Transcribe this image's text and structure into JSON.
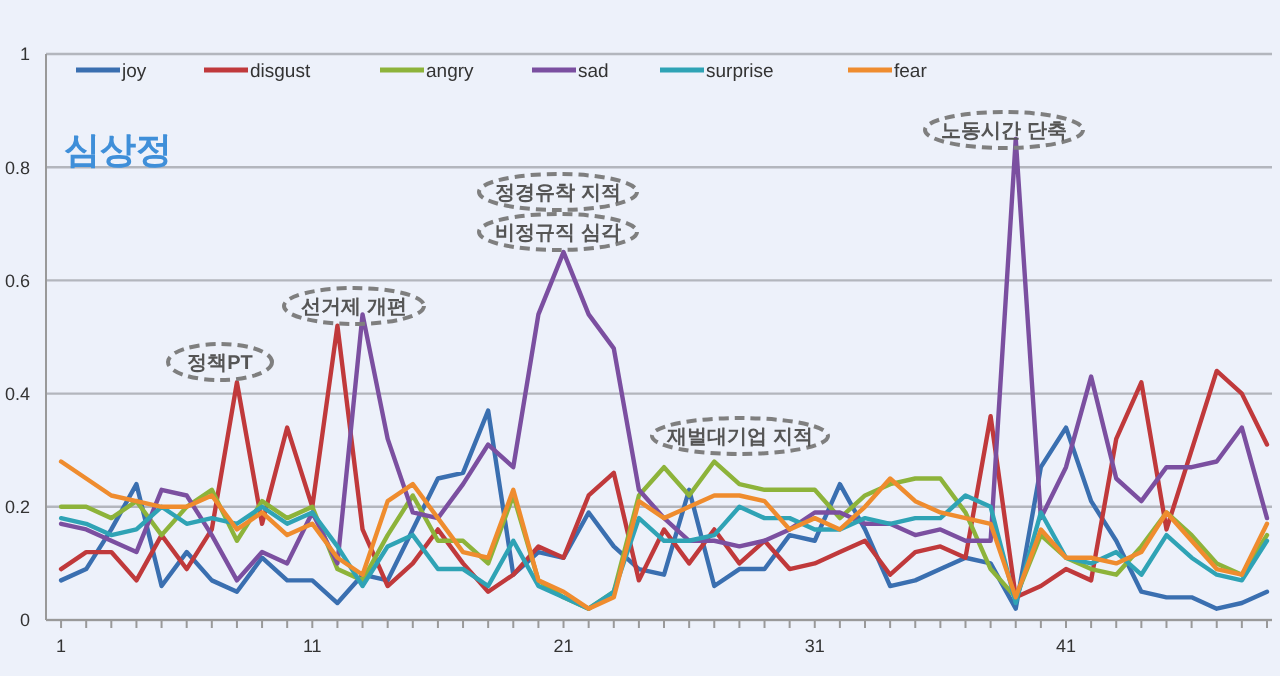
{
  "chart_data": {
    "type": "line",
    "title": "심상정",
    "x": [
      1,
      2,
      3,
      4,
      5,
      6,
      7,
      8,
      9,
      10,
      11,
      12,
      13,
      14,
      15,
      16,
      17,
      18,
      19,
      20,
      21,
      22,
      23,
      24,
      25,
      26,
      27,
      28,
      29,
      30,
      31,
      32,
      33,
      34,
      35,
      36,
      37,
      38,
      39,
      40,
      41,
      42,
      43,
      44,
      45,
      46,
      47,
      48,
      49
    ],
    "series": [
      {
        "name": "joy",
        "color": "#3a6fb0",
        "values": [
          0.07,
          0.09,
          0.16,
          0.24,
          0.06,
          0.12,
          0.07,
          0.05,
          0.11,
          0.07,
          0.07,
          0.03,
          0.08,
          0.07,
          0.16,
          0.25,
          0.26,
          0.37,
          0.08,
          0.12,
          0.11,
          0.19,
          0.13,
          0.09,
          0.08,
          0.23,
          0.06,
          0.09,
          0.09,
          0.15,
          0.14,
          0.24,
          0.16,
          0.06,
          0.07,
          0.09,
          0.11,
          0.1,
          0.02,
          0.27,
          0.34,
          0.21,
          0.14,
          0.05,
          0.04,
          0.04,
          0.02,
          0.03,
          0.05
        ]
      },
      {
        "name": "disgust",
        "color": "#c0393b",
        "values": [
          0.09,
          0.12,
          0.12,
          0.07,
          0.15,
          0.09,
          0.16,
          0.42,
          0.17,
          0.34,
          0.2,
          0.52,
          0.16,
          0.06,
          0.1,
          0.16,
          0.1,
          0.05,
          0.08,
          0.13,
          0.11,
          0.22,
          0.26,
          0.07,
          0.16,
          0.1,
          0.16,
          0.1,
          0.14,
          0.09,
          0.1,
          0.12,
          0.14,
          0.08,
          0.12,
          0.13,
          0.11,
          0.36,
          0.04,
          0.06,
          0.09,
          0.07,
          0.32,
          0.42,
          0.16,
          0.3,
          0.44,
          0.4,
          0.31
        ]
      },
      {
        "name": "angry",
        "color": "#8db33a",
        "values": [
          0.2,
          0.2,
          0.18,
          0.21,
          0.15,
          0.2,
          0.23,
          0.14,
          0.21,
          0.18,
          0.2,
          0.09,
          0.07,
          0.15,
          0.22,
          0.14,
          0.14,
          0.1,
          0.22,
          0.07,
          0.04,
          0.02,
          0.05,
          0.22,
          0.27,
          0.22,
          0.28,
          0.24,
          0.23,
          0.23,
          0.23,
          0.18,
          0.22,
          0.24,
          0.25,
          0.25,
          0.19,
          0.09,
          0.04,
          0.15,
          0.11,
          0.09,
          0.08,
          0.13,
          0.19,
          0.15,
          0.1,
          0.08,
          0.15
        ]
      },
      {
        "name": "sad",
        "color": "#7b4fa0",
        "values": [
          0.17,
          0.16,
          0.14,
          0.12,
          0.23,
          0.22,
          0.15,
          0.07,
          0.12,
          0.1,
          0.19,
          0.1,
          0.54,
          0.32,
          0.19,
          0.18,
          0.24,
          0.31,
          0.27,
          0.54,
          0.65,
          0.54,
          0.48,
          0.23,
          0.18,
          0.14,
          0.14,
          0.13,
          0.14,
          0.16,
          0.19,
          0.19,
          0.17,
          0.17,
          0.15,
          0.16,
          0.14,
          0.14,
          0.85,
          0.18,
          0.27,
          0.43,
          0.25,
          0.21,
          0.27,
          0.27,
          0.28,
          0.34,
          0.18
        ]
      },
      {
        "name": "surprise",
        "color": "#2fa3b5",
        "values": [
          0.18,
          0.17,
          0.15,
          0.16,
          0.2,
          0.17,
          0.18,
          0.17,
          0.2,
          0.17,
          0.19,
          0.13,
          0.06,
          0.13,
          0.15,
          0.09,
          0.09,
          0.06,
          0.14,
          0.06,
          0.04,
          0.02,
          0.05,
          0.18,
          0.14,
          0.14,
          0.15,
          0.2,
          0.18,
          0.18,
          0.16,
          0.16,
          0.18,
          0.17,
          0.18,
          0.18,
          0.22,
          0.2,
          0.03,
          0.19,
          0.11,
          0.1,
          0.12,
          0.08,
          0.15,
          0.11,
          0.08,
          0.07,
          0.14
        ]
      },
      {
        "name": "fear",
        "color": "#ef8c2e",
        "values": [
          0.28,
          0.25,
          0.22,
          0.21,
          0.2,
          0.2,
          0.22,
          0.16,
          0.19,
          0.15,
          0.17,
          0.11,
          0.08,
          0.21,
          0.24,
          0.18,
          0.12,
          0.11,
          0.23,
          0.07,
          0.05,
          0.02,
          0.04,
          0.21,
          0.18,
          0.2,
          0.22,
          0.22,
          0.21,
          0.16,
          0.18,
          0.16,
          0.2,
          0.25,
          0.21,
          0.19,
          0.18,
          0.17,
          0.04,
          0.16,
          0.11,
          0.11,
          0.1,
          0.12,
          0.19,
          0.14,
          0.09,
          0.08,
          0.17
        ]
      }
    ],
    "xlim": [
      0.4,
      49.2
    ],
    "xticks": [
      1,
      {
        "value": 2,
        "label": null
      },
      {
        "value": 3,
        "label": null
      },
      {
        "value": 4,
        "label": null
      },
      {
        "value": 5,
        "label": null
      },
      {
        "value": 6,
        "label": null
      },
      {
        "value": 7,
        "label": null
      },
      {
        "value": 8,
        "label": null
      },
      {
        "value": 9,
        "label": null
      },
      {
        "value": 10,
        "label": null
      },
      11,
      {
        "value": 12,
        "label": null
      },
      {
        "value": 13,
        "label": null
      },
      {
        "value": 14,
        "label": null
      },
      {
        "value": 15,
        "label": null
      },
      {
        "value": 16,
        "label": null
      },
      {
        "value": 17,
        "label": null
      },
      {
        "value": 18,
        "label": null
      },
      {
        "value": 19,
        "label": null
      },
      {
        "value": 20,
        "label": null
      },
      21,
      {
        "value": 22,
        "label": null
      },
      {
        "value": 23,
        "label": null
      },
      {
        "value": 24,
        "label": null
      },
      {
        "value": 25,
        "label": null
      },
      {
        "value": 26,
        "label": null
      },
      {
        "value": 27,
        "label": null
      },
      {
        "value": 28,
        "label": null
      },
      {
        "value": 29,
        "label": null
      },
      {
        "value": 30,
        "label": null
      },
      31,
      {
        "value": 32,
        "label": null
      },
      {
        "value": 33,
        "label": null
      },
      {
        "value": 34,
        "label": null
      },
      {
        "value": 35,
        "label": null
      },
      {
        "value": 36,
        "label": null
      },
      {
        "value": 37,
        "label": null
      },
      {
        "value": 38,
        "label": null
      },
      {
        "value": 39,
        "label": null
      },
      {
        "value": 40,
        "label": null
      },
      41,
      {
        "value": 42,
        "label": null
      },
      {
        "value": 43,
        "label": null
      },
      {
        "value": 44,
        "label": null
      },
      {
        "value": 45,
        "label": null
      },
      {
        "value": 46,
        "label": null
      },
      {
        "value": 47,
        "label": null
      },
      {
        "value": 48,
        "label": null
      },
      {
        "value": 49,
        "label": null
      }
    ],
    "ylim": [
      0,
      1
    ],
    "yticks": [
      0,
      0.2,
      0.4,
      0.6,
      0.8,
      1
    ],
    "grid": "y",
    "legend": "top",
    "marker": "none",
    "line_style": "solid",
    "annotations": [
      "정책PT",
      "선거제 개편",
      "정경유착 지적",
      "비정규직 심각",
      "재벌대기업 지적",
      "노동시간 단축"
    ]
  }
}
